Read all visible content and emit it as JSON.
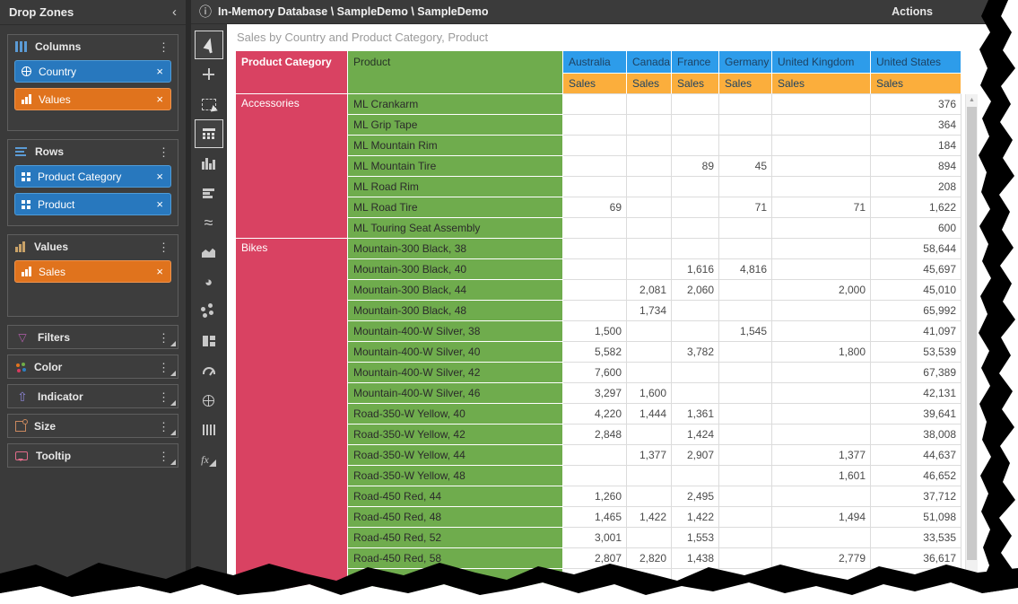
{
  "app": {
    "topbar": {
      "info_icon": "ⓘ",
      "breadcrumb": "In-Memory Database \\ SampleDemo \\ SampleDemo",
      "actions_label": "Actions"
    },
    "canvas_title": "Sales by Country and Product Category, Product",
    "scroll_up_icon": "▲"
  },
  "drop_zones": {
    "title": "Drop Zones",
    "collapse_icon": "‹",
    "menu_icon": "⋮",
    "close_icon": "×",
    "sections": [
      {
        "id": "columns",
        "label": "Columns",
        "icon": "columns-icon",
        "chips": [
          {
            "label": "Country",
            "color": "blue",
            "icon": "globe"
          },
          {
            "label": "Values",
            "color": "orange",
            "icon": "bars"
          }
        ]
      },
      {
        "id": "rows",
        "label": "Rows",
        "icon": "rows-icon",
        "chips": [
          {
            "label": "Product Category",
            "color": "blue",
            "icon": "grid"
          },
          {
            "label": "Product",
            "color": "blue",
            "icon": "grid"
          }
        ]
      },
      {
        "id": "values",
        "label": "Values",
        "icon": "values-icon",
        "chips": [
          {
            "label": "Sales",
            "color": "orange",
            "icon": "bars"
          }
        ]
      },
      {
        "id": "filters",
        "label": "Filters",
        "icon": "filter-icon",
        "chips": []
      },
      {
        "id": "color",
        "label": "Color",
        "icon": "color-dots-icon",
        "chips": []
      },
      {
        "id": "indicator",
        "label": "Indicator",
        "icon": "indicator-arrow-icon",
        "chips": []
      },
      {
        "id": "size",
        "label": "Size",
        "icon": "size-icon",
        "chips": []
      },
      {
        "id": "tooltip",
        "label": "Tooltip",
        "icon": "tooltip-icon",
        "chips": []
      }
    ]
  },
  "toolbox": {
    "tools": [
      {
        "name": "pointer",
        "active": true
      },
      {
        "name": "move",
        "active": false
      },
      {
        "name": "marquee-select",
        "active": false
      },
      {
        "name": "pivot-grid",
        "active": true
      },
      {
        "name": "column-chart",
        "active": false
      },
      {
        "name": "bar-chart",
        "active": false
      },
      {
        "name": "line-chart",
        "active": false
      },
      {
        "name": "area-chart",
        "active": false
      },
      {
        "name": "pie-chart",
        "active": false
      },
      {
        "name": "scatter-chart",
        "active": false
      },
      {
        "name": "treemap",
        "active": false
      },
      {
        "name": "gauge",
        "active": false
      },
      {
        "name": "map",
        "active": false
      },
      {
        "name": "sparkline",
        "active": false
      },
      {
        "name": "formula",
        "active": false
      }
    ]
  },
  "pivot": {
    "row_headers": [
      "Product Category",
      "Product"
    ],
    "columns": [
      "Australia",
      "Canada",
      "France",
      "Germany",
      "United Kingdom",
      "United States"
    ],
    "measure": "Sales",
    "groups": [
      {
        "category": "Accessories",
        "rows": [
          {
            "product": "ML Crankarm",
            "values": [
              "",
              "",
              "",
              "",
              "",
              "376"
            ]
          },
          {
            "product": "ML Grip Tape",
            "values": [
              "",
              "",
              "",
              "",
              "",
              "364"
            ]
          },
          {
            "product": "ML Mountain Rim",
            "values": [
              "",
              "",
              "",
              "",
              "",
              "184"
            ]
          },
          {
            "product": "ML Mountain Tire",
            "values": [
              "",
              "",
              "89",
              "45",
              "",
              "894"
            ]
          },
          {
            "product": "ML Road Rim",
            "values": [
              "",
              "",
              "",
              "",
              "",
              "208"
            ]
          },
          {
            "product": "ML Road Tire",
            "values": [
              "69",
              "",
              "",
              "71",
              "71",
              "1,622"
            ]
          },
          {
            "product": "ML Touring Seat Assembly",
            "values": [
              "",
              "",
              "",
              "",
              "",
              "600"
            ]
          }
        ]
      },
      {
        "category": "Bikes",
        "rows": [
          {
            "product": "Mountain-300 Black, 38",
            "values": [
              "",
              "",
              "",
              "",
              "",
              "58,644"
            ]
          },
          {
            "product": "Mountain-300 Black, 40",
            "values": [
              "",
              "",
              "1,616",
              "4,816",
              "",
              "45,697"
            ]
          },
          {
            "product": "Mountain-300 Black, 44",
            "values": [
              "",
              "2,081",
              "2,060",
              "",
              "2,000",
              "45,010"
            ]
          },
          {
            "product": "Mountain-300 Black, 48",
            "values": [
              "",
              "1,734",
              "",
              "",
              "",
              "65,992"
            ]
          },
          {
            "product": "Mountain-400-W Silver, 38",
            "values": [
              "1,500",
              "",
              "",
              "1,545",
              "",
              "41,097"
            ]
          },
          {
            "product": "Mountain-400-W Silver, 40",
            "values": [
              "5,582",
              "",
              "3,782",
              "",
              "1,800",
              "53,539"
            ]
          },
          {
            "product": "Mountain-400-W Silver, 42",
            "values": [
              "7,600",
              "",
              "",
              "",
              "",
              "67,389"
            ]
          },
          {
            "product": "Mountain-400-W Silver, 46",
            "values": [
              "3,297",
              "1,600",
              "",
              "",
              "",
              "42,131"
            ]
          },
          {
            "product": "Road-350-W Yellow, 40",
            "values": [
              "4,220",
              "1,444",
              "1,361",
              "",
              "",
              "39,641"
            ]
          },
          {
            "product": "Road-350-W Yellow, 42",
            "values": [
              "2,848",
              "",
              "1,424",
              "",
              "",
              "38,008"
            ]
          },
          {
            "product": "Road-350-W Yellow, 44",
            "values": [
              "",
              "1,377",
              "2,907",
              "",
              "1,377",
              "44,637"
            ]
          },
          {
            "product": "Road-350-W Yellow, 48",
            "values": [
              "",
              "",
              "",
              "",
              "1,601",
              "46,652"
            ]
          },
          {
            "product": "Road-450 Red, 44",
            "values": [
              "1,260",
              "",
              "2,495",
              "",
              "",
              "37,712"
            ]
          },
          {
            "product": "Road-450 Red, 48",
            "values": [
              "1,465",
              "1,422",
              "1,422",
              "",
              "1,494",
              "51,098"
            ]
          },
          {
            "product": "Road-450 Red, 52",
            "values": [
              "3,001",
              "",
              "1,553",
              "",
              "",
              "33,535"
            ]
          },
          {
            "product": "Road-450 Red, 58",
            "values": [
              "2,807",
              "2,820",
              "1,438",
              "",
              "2,779",
              "36,617"
            ]
          },
          {
            "product": "",
            "values": [
              "",
              "",
              "",
              "",
              "",
              ""
            ]
          }
        ]
      }
    ]
  },
  "colors": {
    "chip_blue": "#2878BE",
    "chip_orange": "#E0731D",
    "header_country_blue": "#2D9CEA",
    "header_sales_amber": "#FBAE3C",
    "category_pink": "#D94262",
    "product_green": "#6FAC4D",
    "panel_dark": "#3A3A3A"
  }
}
